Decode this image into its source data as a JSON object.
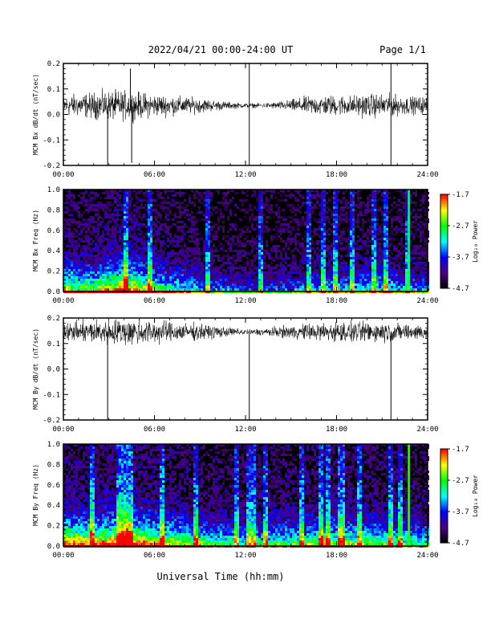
{
  "header": {
    "title": "2022/04/21  00:00-24:00 UT",
    "page": "Page 1/1"
  },
  "xlabel": "Universal Time (hh:mm)",
  "colors": {
    "trace": "#000000",
    "colormap": [
      "#000000",
      "#4b0082",
      "#0000ff",
      "#00ffff",
      "#00ff00",
      "#ffff00",
      "#ff0000"
    ]
  },
  "chart_data": [
    {
      "type": "line",
      "ylabel": "MCM Bx dB/dt (nT/sec)",
      "xlim": [
        "00:00",
        "24:00"
      ],
      "x_ticks": [
        "00:00",
        "06:00",
        "12:00",
        "18:00",
        "24:00"
      ],
      "ylim": [
        -0.2,
        0.2
      ],
      "y_ticks": [
        "-0.2",
        "-0.1",
        "0.0",
        "0.1",
        "0.2"
      ],
      "baseline": 0.035,
      "noise_amplitude_by_hour": [
        0.035,
        0.04,
        0.045,
        0.05,
        0.05,
        0.045,
        0.04,
        0.035,
        0.03,
        0.025,
        0.018,
        0.012,
        0.008,
        0.008,
        0.012,
        0.02,
        0.03,
        0.035,
        0.035,
        0.035,
        0.04,
        0.04,
        0.035,
        0.03,
        0.03
      ],
      "spikes": [
        {
          "time": "02:55",
          "value": -0.2
        },
        {
          "time": "04:25",
          "value": 0.18
        },
        {
          "time": "04:30",
          "value": -0.19
        },
        {
          "time": "12:15",
          "value": 0.2
        },
        {
          "time": "12:15",
          "value": -0.2
        },
        {
          "time": "21:35",
          "value": 0.2
        },
        {
          "time": "21:35",
          "value": -0.2
        }
      ]
    },
    {
      "type": "heatmap",
      "ylabel": "MCM Bx Freq (Hz)",
      "xlim": [
        "00:00",
        "24:00"
      ],
      "x_ticks": [
        "00:00",
        "06:00",
        "12:00",
        "18:00",
        "24:00"
      ],
      "ylim": [
        0.0,
        1.0
      ],
      "y_ticks": [
        "0.0",
        "0.2",
        "0.4",
        "0.6",
        "0.8",
        "1.0"
      ],
      "colorbar": {
        "label": "Log₁₀ Power",
        "range": [
          -4.7,
          -1.7
        ],
        "ticks": [
          "-1.7",
          "-2.7",
          "-3.7",
          "-4.7"
        ]
      },
      "activity_by_hour": [
        0.7,
        0.6,
        0.6,
        0.75,
        0.85,
        0.7,
        0.55,
        0.5,
        0.45,
        0.4,
        0.35,
        0.3,
        0.25,
        0.25,
        0.3,
        0.3,
        0.35,
        0.4,
        0.4,
        0.4,
        0.45,
        0.45,
        0.4,
        0.35,
        0.35
      ],
      "vertical_streaks": [
        "04:00",
        "05:40",
        "09:30",
        "13:00",
        "16:10",
        "17:00",
        "17:50",
        "19:00",
        "20:20",
        "21:10",
        "22:40"
      ],
      "strong_streak": {
        "time": "22:45",
        "level": -2.9
      }
    },
    {
      "type": "line",
      "ylabel": "MCM By dB/dt (nT/sec)",
      "xlim": [
        "00:00",
        "24:00"
      ],
      "x_ticks": [
        "00:00",
        "06:00",
        "12:00",
        "18:00",
        "24:00"
      ],
      "ylim": [
        -0.2,
        0.2
      ],
      "y_ticks": [
        "-0.2",
        "-0.1",
        "0.0",
        "0.1",
        "0.2"
      ],
      "baseline": 0.145,
      "noise_amplitude_by_hour": [
        0.03,
        0.035,
        0.04,
        0.045,
        0.045,
        0.045,
        0.04,
        0.035,
        0.03,
        0.028,
        0.022,
        0.015,
        0.01,
        0.012,
        0.018,
        0.022,
        0.028,
        0.032,
        0.035,
        0.035,
        0.035,
        0.035,
        0.03,
        0.028,
        0.028
      ],
      "spikes": [
        {
          "time": "02:55",
          "value": -0.2
        },
        {
          "time": "12:15",
          "value": -0.2
        },
        {
          "time": "21:35",
          "value": -0.2
        }
      ]
    },
    {
      "type": "heatmap",
      "ylabel": "MCM By Freq (Hz)",
      "xlim": [
        "00:00",
        "24:00"
      ],
      "x_ticks": [
        "00:00",
        "06:00",
        "12:00",
        "18:00",
        "24:00"
      ],
      "ylim": [
        0.0,
        1.0
      ],
      "y_ticks": [
        "0.0",
        "0.2",
        "0.4",
        "0.6",
        "0.8",
        "1.0"
      ],
      "colorbar": {
        "label": "Log₁₀ Power",
        "range": [
          -4.7,
          -1.7
        ],
        "ticks": [
          "-1.7",
          "-2.7",
          "-3.7",
          "-4.7"
        ]
      },
      "activity_by_hour": [
        0.85,
        0.8,
        0.8,
        0.85,
        0.95,
        0.85,
        0.75,
        0.7,
        0.65,
        0.6,
        0.55,
        0.5,
        0.45,
        0.5,
        0.55,
        0.55,
        0.6,
        0.65,
        0.65,
        0.6,
        0.6,
        0.6,
        0.55,
        0.5,
        0.5
      ],
      "vertical_streaks": [
        "01:50",
        "03:30",
        "03:50",
        "04:10",
        "04:20",
        "06:30",
        "08:40",
        "11:20",
        "12:10",
        "12:30",
        "13:10",
        "15:40",
        "16:50",
        "17:20",
        "18:10",
        "18:20",
        "19:30",
        "21:30",
        "22:10"
      ],
      "strong_streak": {
        "time": "22:45",
        "level": -2.6
      }
    }
  ]
}
